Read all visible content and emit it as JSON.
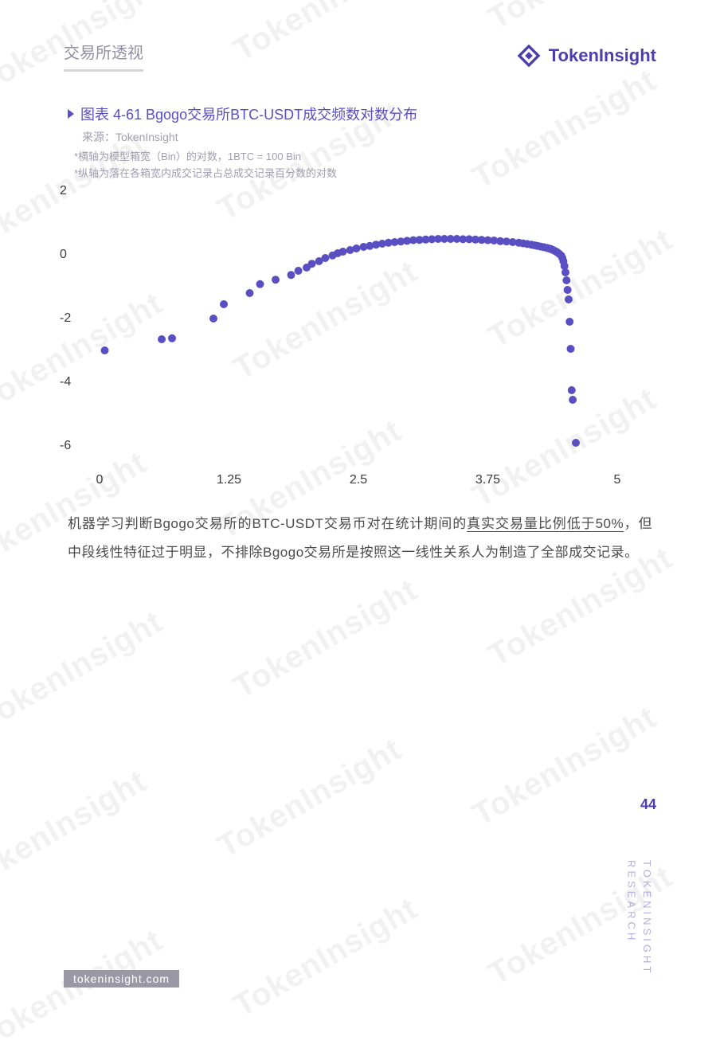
{
  "header": {
    "title": "交易所透视",
    "brand": "TokenInsight"
  },
  "chart": {
    "type": "scatter",
    "title": "图表 4-61 Bgogo交易所BTC-USDT成交频数对数分布",
    "source": "来源：TokenInsight",
    "note_x": "*横轴为模型箱宽（Bin）的对数，1BTC = 100 Bin",
    "note_y": "*纵轴为落在各箱宽内成交记录占总成交记录百分数的对数",
    "marker_color": "#5a4fc2",
    "marker_radius": 5,
    "background_color": "#ffffff",
    "xlim": [
      0,
      5
    ],
    "ylim": [
      -6,
      2
    ],
    "xticks": [
      0,
      1.25,
      2.5,
      3.75,
      5
    ],
    "yticks": [
      -6,
      -4,
      -2,
      0,
      2
    ],
    "points": [
      [
        0.05,
        -3.0
      ],
      [
        0.6,
        -2.65
      ],
      [
        0.7,
        -2.62
      ],
      [
        1.1,
        -2.0
      ],
      [
        1.2,
        -1.55
      ],
      [
        1.45,
        -1.2
      ],
      [
        1.55,
        -0.92
      ],
      [
        1.7,
        -0.78
      ],
      [
        1.85,
        -0.63
      ],
      [
        1.92,
        -0.5
      ],
      [
        2.0,
        -0.4
      ],
      [
        2.05,
        -0.28
      ],
      [
        2.12,
        -0.2
      ],
      [
        2.18,
        -0.1
      ],
      [
        2.25,
        -0.02
      ],
      [
        2.3,
        0.05
      ],
      [
        2.35,
        0.1
      ],
      [
        2.42,
        0.15
      ],
      [
        2.48,
        0.2
      ],
      [
        2.55,
        0.25
      ],
      [
        2.61,
        0.28
      ],
      [
        2.67,
        0.32
      ],
      [
        2.73,
        0.35
      ],
      [
        2.79,
        0.38
      ],
      [
        2.85,
        0.4
      ],
      [
        2.91,
        0.42
      ],
      [
        2.97,
        0.44
      ],
      [
        3.03,
        0.46
      ],
      [
        3.09,
        0.47
      ],
      [
        3.15,
        0.48
      ],
      [
        3.21,
        0.49
      ],
      [
        3.27,
        0.5
      ],
      [
        3.33,
        0.5
      ],
      [
        3.39,
        0.5
      ],
      [
        3.45,
        0.5
      ],
      [
        3.51,
        0.49
      ],
      [
        3.57,
        0.49
      ],
      [
        3.63,
        0.48
      ],
      [
        3.69,
        0.47
      ],
      [
        3.75,
        0.46
      ],
      [
        3.81,
        0.45
      ],
      [
        3.87,
        0.43
      ],
      [
        3.93,
        0.42
      ],
      [
        3.99,
        0.4
      ],
      [
        4.05,
        0.38
      ],
      [
        4.09,
        0.36
      ],
      [
        4.13,
        0.34
      ],
      [
        4.17,
        0.32
      ],
      [
        4.2,
        0.3
      ],
      [
        4.23,
        0.28
      ],
      [
        4.26,
        0.26
      ],
      [
        4.29,
        0.24
      ],
      [
        4.32,
        0.22
      ],
      [
        4.34,
        0.2
      ],
      [
        4.36,
        0.18
      ],
      [
        4.38,
        0.15
      ],
      [
        4.4,
        0.12
      ],
      [
        4.42,
        0.08
      ],
      [
        4.44,
        0.03
      ],
      [
        4.46,
        -0.03
      ],
      [
        4.47,
        -0.1
      ],
      [
        4.48,
        -0.2
      ],
      [
        4.49,
        -0.35
      ],
      [
        4.5,
        -0.55
      ],
      [
        4.51,
        -0.8
      ],
      [
        4.52,
        -1.1
      ],
      [
        4.53,
        -1.4
      ],
      [
        4.54,
        -2.1
      ],
      [
        4.55,
        -2.95
      ],
      [
        4.56,
        -4.25
      ],
      [
        4.57,
        -4.55
      ],
      [
        4.6,
        -5.9
      ]
    ]
  },
  "body": {
    "p1a": "机器学习判断Bgogo交易所的BTC-USDT交易币对在统计期间的",
    "p1u": "真实交易量比例低于50%",
    "p1b": "，但中段线性特征过于明显，不排除Bgogo交易所是按照这一线性关系人为制造了全部成交记录。"
  },
  "page": {
    "number": "44"
  },
  "side": {
    "line1": "TOKENINSIGHT",
    "line2": "RESEARCH"
  },
  "footer": {
    "url": "tokeninsight.com"
  },
  "watermark": {
    "text": "TokenInsight"
  }
}
